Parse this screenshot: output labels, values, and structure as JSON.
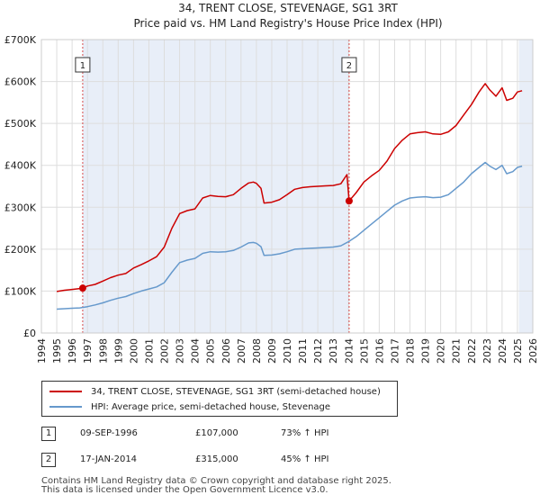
{
  "chart_data": {
    "type": "line",
    "title": "34, TRENT CLOSE, STEVENAGE, SG1 3RT",
    "subtitle": "Price paid vs. HM Land Registry's House Price Index (HPI)",
    "xlabel": "",
    "ylabel": "",
    "xlim": [
      1994,
      2026
    ],
    "ylim": [
      0,
      700000
    ],
    "y_ticks": [
      {
        "value": 0,
        "label": "£0"
      },
      {
        "value": 100000,
        "label": "£100K"
      },
      {
        "value": 200000,
        "label": "£200K"
      },
      {
        "value": 300000,
        "label": "£300K"
      },
      {
        "value": 400000,
        "label": "£400K"
      },
      {
        "value": 500000,
        "label": "£500K"
      },
      {
        "value": 600000,
        "label": "£600K"
      },
      {
        "value": 700000,
        "label": "£700K"
      }
    ],
    "x_ticks": [
      "1994",
      "1995",
      "1996",
      "1997",
      "1998",
      "1999",
      "2000",
      "2001",
      "2002",
      "2003",
      "2004",
      "2005",
      "2006",
      "2007",
      "2008",
      "2009",
      "2010",
      "2011",
      "2012",
      "2013",
      "2014",
      "2015",
      "2016",
      "2017",
      "2018",
      "2019",
      "2020",
      "2021",
      "2022",
      "2023",
      "2024",
      "2025",
      "2026"
    ],
    "grid": true,
    "shaded_ranges": [
      {
        "from": 1996.69,
        "to": 2014.04
      },
      {
        "from": 2025.1,
        "to": 2026
      }
    ],
    "series": [
      {
        "name": "34, TRENT CLOSE, STEVENAGE, SG1 3RT (semi-detached house)",
        "color": "#cc0000",
        "x": [
          1995.0,
          1995.5,
          1996.0,
          1996.5,
          1996.69,
          1997.0,
          1997.5,
          1998.0,
          1998.5,
          1999.0,
          1999.5,
          2000.0,
          2000.5,
          2001.0,
          2001.5,
          2002.0,
          2002.5,
          2003.0,
          2003.5,
          2004.0,
          2004.5,
          2005.0,
          2005.5,
          2006.0,
          2006.5,
          2007.0,
          2007.5,
          2007.8,
          2008.0,
          2008.3,
          2008.5,
          2009.0,
          2009.5,
          2010.0,
          2010.5,
          2011.0,
          2011.5,
          2012.0,
          2012.5,
          2013.0,
          2013.5,
          2013.9,
          2014.04,
          2014.5,
          2015.0,
          2015.5,
          2016.0,
          2016.5,
          2017.0,
          2017.5,
          2018.0,
          2018.5,
          2019.0,
          2019.5,
          2020.0,
          2020.5,
          2021.0,
          2021.5,
          2022.0,
          2022.5,
          2022.9,
          2023.2,
          2023.6,
          2024.0,
          2024.3,
          2024.7,
          2025.0,
          2025.3
        ],
        "values": [
          99000,
          102000,
          104000,
          106000,
          107000,
          112000,
          116000,
          124000,
          132000,
          138000,
          142000,
          155000,
          163000,
          172000,
          182000,
          205000,
          250000,
          285000,
          292000,
          296000,
          322000,
          328000,
          326000,
          325000,
          330000,
          345000,
          358000,
          360000,
          357000,
          345000,
          310000,
          312000,
          318000,
          330000,
          343000,
          347000,
          349000,
          350000,
          351000,
          352000,
          356000,
          378000,
          315000,
          335000,
          360000,
          375000,
          388000,
          410000,
          440000,
          460000,
          475000,
          478000,
          480000,
          475000,
          474000,
          480000,
          495000,
          520000,
          545000,
          575000,
          595000,
          580000,
          565000,
          585000,
          555000,
          560000,
          575000,
          578000
        ]
      },
      {
        "name": "HPI: Average price, semi-detached house, Stevenage",
        "color": "#6699cc",
        "x": [
          1995.0,
          1995.5,
          1996.0,
          1996.5,
          1997.0,
          1997.5,
          1998.0,
          1998.5,
          1999.0,
          1999.5,
          2000.0,
          2000.5,
          2001.0,
          2001.5,
          2002.0,
          2002.5,
          2003.0,
          2003.5,
          2004.0,
          2004.5,
          2005.0,
          2005.5,
          2006.0,
          2006.5,
          2007.0,
          2007.5,
          2007.8,
          2008.0,
          2008.3,
          2008.5,
          2009.0,
          2009.5,
          2010.0,
          2010.5,
          2011.0,
          2011.5,
          2012.0,
          2012.5,
          2013.0,
          2013.5,
          2014.0,
          2014.5,
          2015.0,
          2015.5,
          2016.0,
          2016.5,
          2017.0,
          2017.5,
          2018.0,
          2018.5,
          2019.0,
          2019.5,
          2020.0,
          2020.5,
          2021.0,
          2021.5,
          2022.0,
          2022.5,
          2022.9,
          2023.2,
          2023.6,
          2024.0,
          2024.3,
          2024.7,
          2025.0,
          2025.3
        ],
        "values": [
          57000,
          58000,
          59000,
          60000,
          63000,
          67000,
          72000,
          78000,
          83000,
          87000,
          94000,
          100000,
          105000,
          110000,
          120000,
          145000,
          168000,
          174000,
          178000,
          190000,
          194000,
          193000,
          194000,
          197000,
          205000,
          215000,
          216000,
          214000,
          206000,
          185000,
          186000,
          189000,
          194000,
          200000,
          201000,
          202000,
          203000,
          204000,
          205000,
          208000,
          218000,
          230000,
          245000,
          260000,
          275000,
          290000,
          305000,
          315000,
          322000,
          324000,
          325000,
          323000,
          324000,
          330000,
          345000,
          360000,
          380000,
          395000,
          407000,
          398000,
          390000,
          400000,
          380000,
          385000,
          395000,
          398000
        ]
      }
    ],
    "sales": [
      {
        "num": "1",
        "x": 1996.69,
        "value": 107000,
        "date": "09-SEP-1996",
        "price": "£107,000",
        "hpi": "73% ↑ HPI"
      },
      {
        "num": "2",
        "x": 2014.04,
        "value": 315000,
        "date": "17-JAN-2014",
        "price": "£315,000",
        "hpi": "45% ↑ HPI"
      }
    ]
  },
  "legend": {
    "property_label": "34, TRENT CLOSE, STEVENAGE, SG1 3RT (semi-detached house)",
    "hpi_label": "HPI: Average price, semi-detached house, Stevenage"
  },
  "colors": {
    "property": "#cc0000",
    "hpi": "#6699cc",
    "grid": "#dddddd",
    "shade": "#e8eef8"
  },
  "footer": {
    "line1": "Contains HM Land Registry data © Crown copyright and database right 2025.",
    "line2": "This data is licensed under the Open Government Licence v3.0."
  }
}
